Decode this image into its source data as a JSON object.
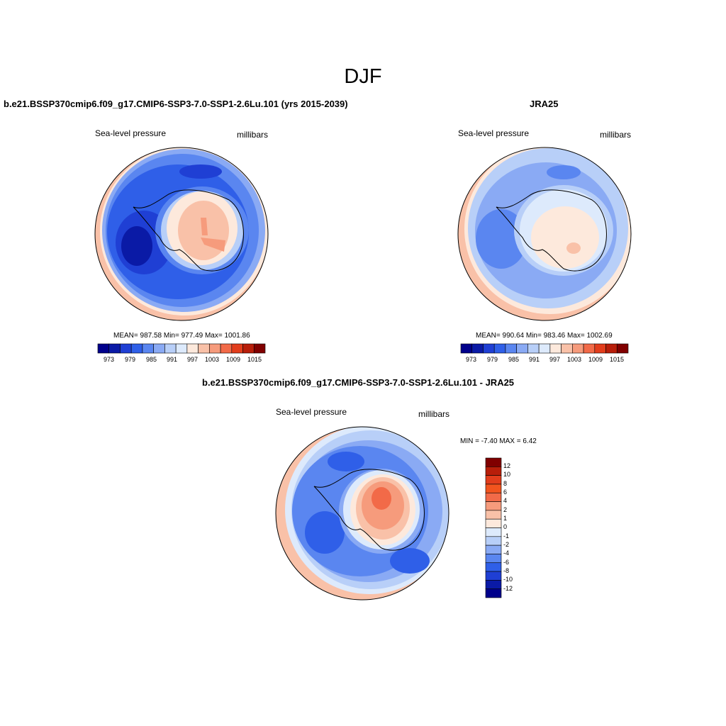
{
  "title": "DJF",
  "panels": [
    {
      "title": "b.e21.BSSP370cmip6.f09_g17.CMIP6-SSP3-7.0-SSP1-2.6Lu.101 (yrs 2015-2039)",
      "left_label": "Sea-level pressure",
      "right_label": "millibars",
      "stats": "MEAN= 987.58  Min= 977.49  Max= 1001.86",
      "colorbar_ticks": [
        "973",
        "979",
        "985",
        "991",
        "997",
        "1003",
        "1009",
        "1015"
      ]
    },
    {
      "title": "JRA25",
      "left_label": "Sea-level pressure",
      "right_label": "millibars",
      "stats": "MEAN= 990.64  Min= 983.46  Max= 1002.69",
      "colorbar_ticks": [
        "973",
        "979",
        "985",
        "991",
        "997",
        "1003",
        "1009",
        "1015"
      ]
    },
    {
      "title": "b.e21.BSSP370cmip6.f09_g17.CMIP6-SSP3-7.0-SSP1-2.6Lu.101 - JRA25",
      "left_label": "Sea-level pressure",
      "right_label": "millibars",
      "stats": "MIN =  -7.40 MAX =   6.42",
      "colorbar_labels": [
        "12",
        "10",
        "8",
        "6",
        "4",
        "2",
        "1",
        "0",
        "-1",
        "-2",
        "-4",
        "-6",
        "-8",
        "-10",
        "-12"
      ]
    }
  ],
  "colors": {
    "abs_palette": [
      "#00008b",
      "#0a1aa6",
      "#1f3fd4",
      "#2f5fe8",
      "#5a86f0",
      "#8aaaf4",
      "#b8cff8",
      "#ddeafc",
      "#fde9dc",
      "#f9c1a8",
      "#f69b7c",
      "#f26a48",
      "#e23d1c",
      "#b81e0a",
      "#800000"
    ],
    "diff_palette": [
      "#800000",
      "#b81e0a",
      "#e23d1c",
      "#f2541e",
      "#f26a48",
      "#f69b7c",
      "#f9c1a8",
      "#fde9dc",
      "#ddeafc",
      "#b8cff8",
      "#8aaaf4",
      "#5a86f0",
      "#2f5fe8",
      "#1f3fd4",
      "#0a1aa6",
      "#00008b"
    ]
  }
}
